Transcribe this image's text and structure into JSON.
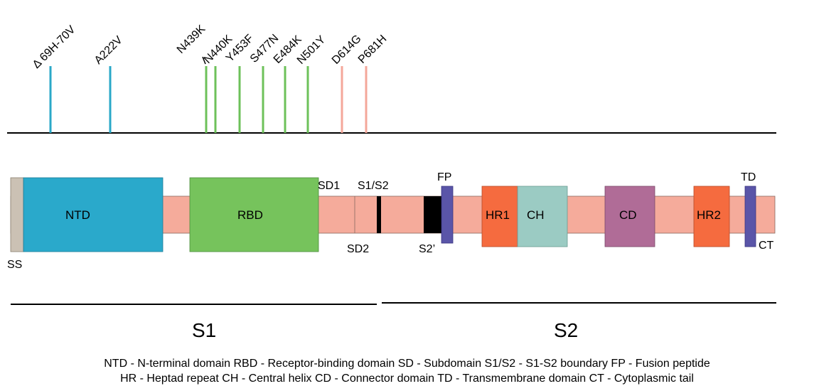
{
  "colors": {
    "blue_mut": "#2aa8c8",
    "green_mut": "#6dc15a",
    "pink_mut": "#f4a79a",
    "backbone": "#f5ab9b",
    "ss": "#cbc1b4",
    "ntd": "#2aa9cb",
    "rbd": "#76c35c",
    "fp": "#5a55a8",
    "hr": "#f56b3f",
    "ch": "#9bcbc3",
    "cd": "#b06c97",
    "td": "#5a55a8",
    "black": "#000000"
  },
  "mutations": [
    {
      "label": "Δ 69H-70V",
      "group": "NTD"
    },
    {
      "label": "A222V",
      "group": "NTD"
    },
    {
      "label": "N439K",
      "group": "RBD"
    },
    {
      "label": "N440K",
      "group": "RBD"
    },
    {
      "label": "Y453F",
      "group": "RBD"
    },
    {
      "label": "S477N",
      "group": "RBD"
    },
    {
      "label": "E484K",
      "group": "RBD"
    },
    {
      "label": "N501Y",
      "group": "RBD"
    },
    {
      "label": "D614G",
      "group": "other"
    },
    {
      "label": "P681H",
      "group": "other"
    }
  ],
  "domains": {
    "ss": "SS",
    "ntd": "NTD",
    "rbd": "RBD",
    "sd1": "SD1",
    "sd2": "SD2",
    "s1s2": "S1/S2",
    "s2prime": "S2’",
    "fp": "FP",
    "hr1": "HR1",
    "ch": "CH",
    "cd": "CD",
    "hr2": "HR2",
    "td": "TD",
    "ct": "CT"
  },
  "subunits": {
    "s1": "S1",
    "s2": "S2"
  },
  "legend": {
    "line1": "NTD - N-terminal domain  RBD - Receptor-binding domain  SD - Subdomain  S1/S2 - S1-S2 boundary  FP - Fusion peptide",
    "line2": "HR - Heptad repeat  CH - Central helix  CD - Connector domain  TD - Transmembrane domain   CT - Cytoplasmic tail"
  }
}
